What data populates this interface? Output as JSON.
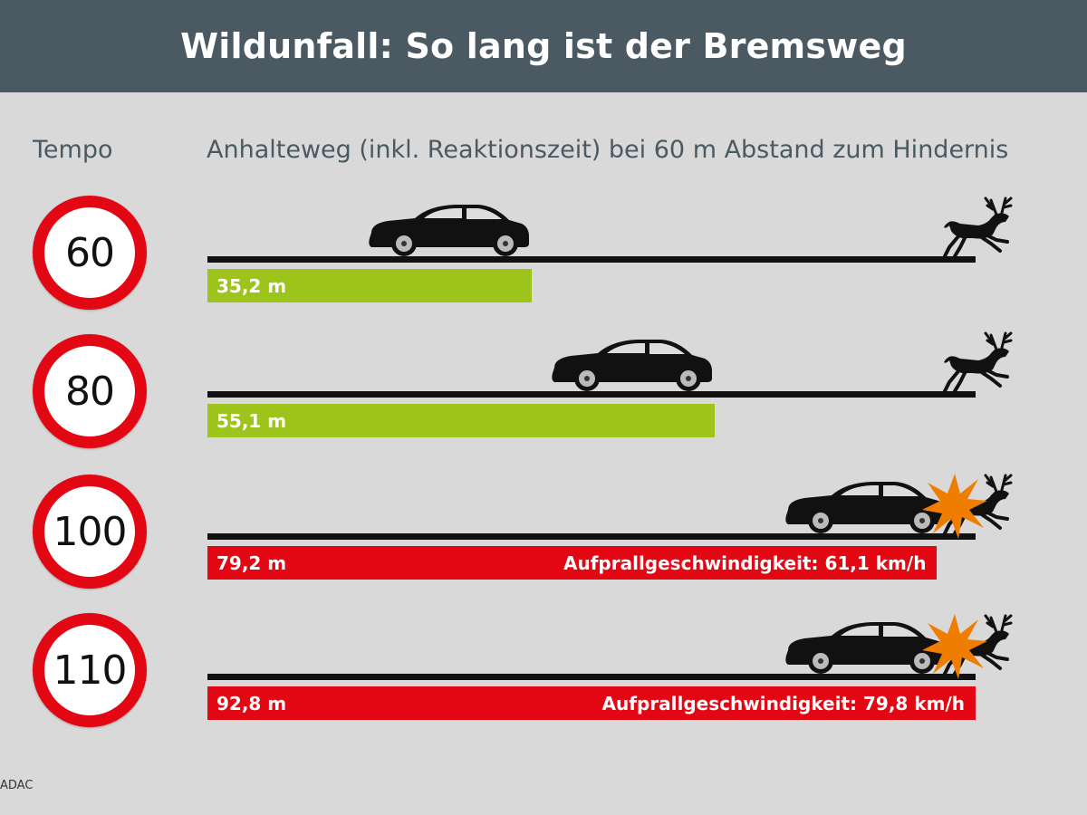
{
  "header": {
    "title": "Wildunfall: So lang ist der Bremsweg"
  },
  "labels": {
    "tempo": "Tempo",
    "anhalteweg": "Anhalteweg (inkl. Reaktionszeit) bei 60 m Abstand zum Hindernis"
  },
  "source": "ADAC",
  "colors": {
    "safe": "#9dc41a",
    "crash": "#e30613",
    "header": "#4a5962",
    "sign_ring": "#e30613",
    "burst": "#ef7d00"
  },
  "icons": [
    "speed-limit-sign",
    "car-icon",
    "deer-icon",
    "impact-burst-icon"
  ],
  "chart_data": {
    "type": "bar",
    "orientation": "horizontal",
    "title": "Wildunfall: So lang ist der Bremsweg",
    "xlabel": "Anhalteweg (inkl. Reaktionszeit) bei 60 m Abstand zum Hindernis",
    "ylabel": "Tempo",
    "obstacle_distance_m": 60,
    "categories": [
      "60",
      "80",
      "100",
      "110"
    ],
    "values": [
      35.2,
      55.1,
      79.2,
      92.8
    ],
    "value_labels": [
      "35,2 m",
      "55,1 m",
      "79,2 m",
      "92,8 m"
    ],
    "collision": [
      false,
      false,
      true,
      true
    ],
    "impact_labels": [
      "",
      "",
      "Aufprallgeschwindigkeit: 61,1 km/h",
      "Aufprallgeschwindigkeit: 79,8 km/h"
    ],
    "impact_speed_kmh": [
      null,
      null,
      61.1,
      79.8
    ]
  }
}
